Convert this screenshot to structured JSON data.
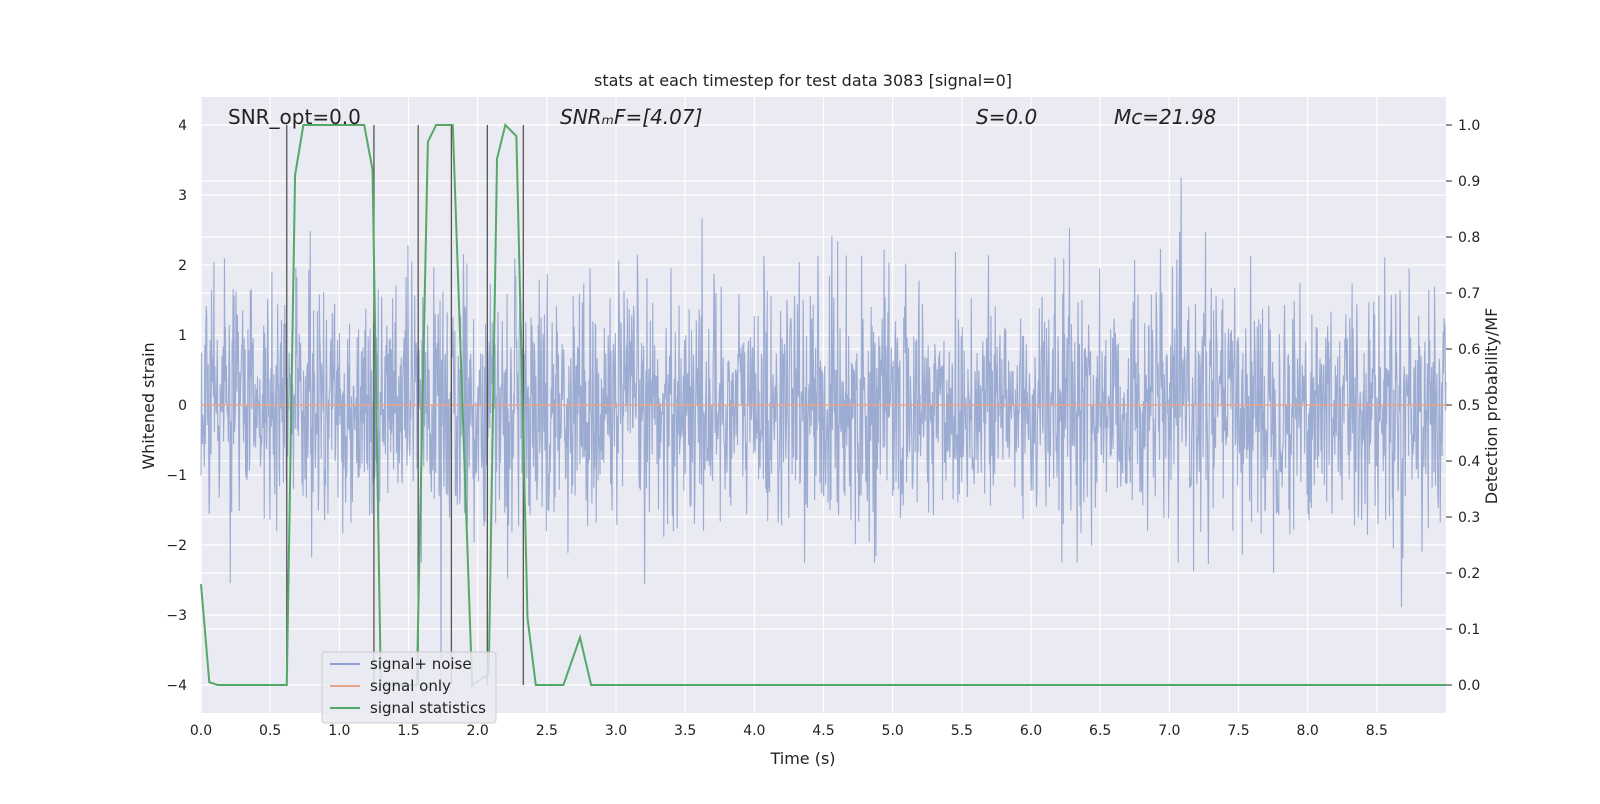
{
  "chart_data": {
    "type": "line",
    "title": "stats at each timestep for test data 3083 [signal=0]",
    "xlabel": "Time (s)",
    "ylabel_left": "Whitened strain",
    "ylabel_right": "Detection probability/MF",
    "xlim": [
      0.0,
      9.0
    ],
    "ylim_left": [
      -4.4,
      4.4
    ],
    "ylim_right": [
      -0.05,
      1.05
    ],
    "x_ticks": [
      "0.0",
      "0.5",
      "1.0",
      "1.5",
      "2.0",
      "2.5",
      "3.0",
      "3.5",
      "4.0",
      "4.5",
      "5.0",
      "5.5",
      "6.0",
      "6.5",
      "7.0",
      "7.5",
      "8.0",
      "8.5"
    ],
    "y_ticks_left": [
      4,
      3,
      2,
      1,
      0,
      -1,
      -2,
      -3,
      -4
    ],
    "y_ticks_left_labels": [
      "4",
      "3",
      "2",
      "1",
      "0",
      "−1",
      "−2",
      "−3",
      "−4"
    ],
    "y_ticks_right": [
      "1.0",
      "0.9",
      "0.8",
      "0.7",
      "0.6",
      "0.5",
      "0.4",
      "0.3",
      "0.2",
      "0.1",
      "0.0"
    ],
    "grid": true,
    "background": "#eaeaf2",
    "legend_position": "lower-left",
    "annotations": {
      "snr_opt": "SNR_opt=0.0",
      "snr_mf": "SNRₘF=[4.07]",
      "s": "S=0.0",
      "mc": "Mᴄ=21.98"
    },
    "series": [
      {
        "name": "signal+ noise",
        "color": "#8da0cb",
        "description_values": "dense whitened noise, amplitude roughly within ±1.6 with peaks up to about ±4"
      },
      {
        "name": "signal only",
        "color": "#e8a58a",
        "x": [
          0.0,
          9.0
        ],
        "y": [
          0.0,
          0.0
        ]
      },
      {
        "name": "signal statistics",
        "color": "#55a868",
        "axis": "right",
        "x": [
          0.0,
          0.06,
          0.12,
          0.62,
          0.68,
          0.74,
          0.8,
          1.0,
          1.18,
          1.24,
          1.3,
          1.56,
          1.64,
          1.7,
          1.82,
          1.96,
          2.08,
          2.14,
          2.2,
          2.28,
          2.36,
          2.42,
          2.62,
          2.74,
          2.82,
          2.9,
          9.0
        ],
        "y": [
          0.18,
          0.005,
          0.0,
          0.0,
          0.91,
          1.0,
          1.0,
          1.0,
          1.0,
          0.92,
          0.0,
          0.0,
          0.97,
          1.0,
          1.0,
          0.0,
          0.02,
          0.94,
          1.0,
          0.98,
          0.12,
          0.0,
          0.0,
          0.085,
          0.0,
          0.0,
          0.0
        ]
      }
    ],
    "vertical_markers_x": [
      0.62,
      1.25,
      1.57,
      1.81,
      2.07,
      2.33
    ]
  }
}
